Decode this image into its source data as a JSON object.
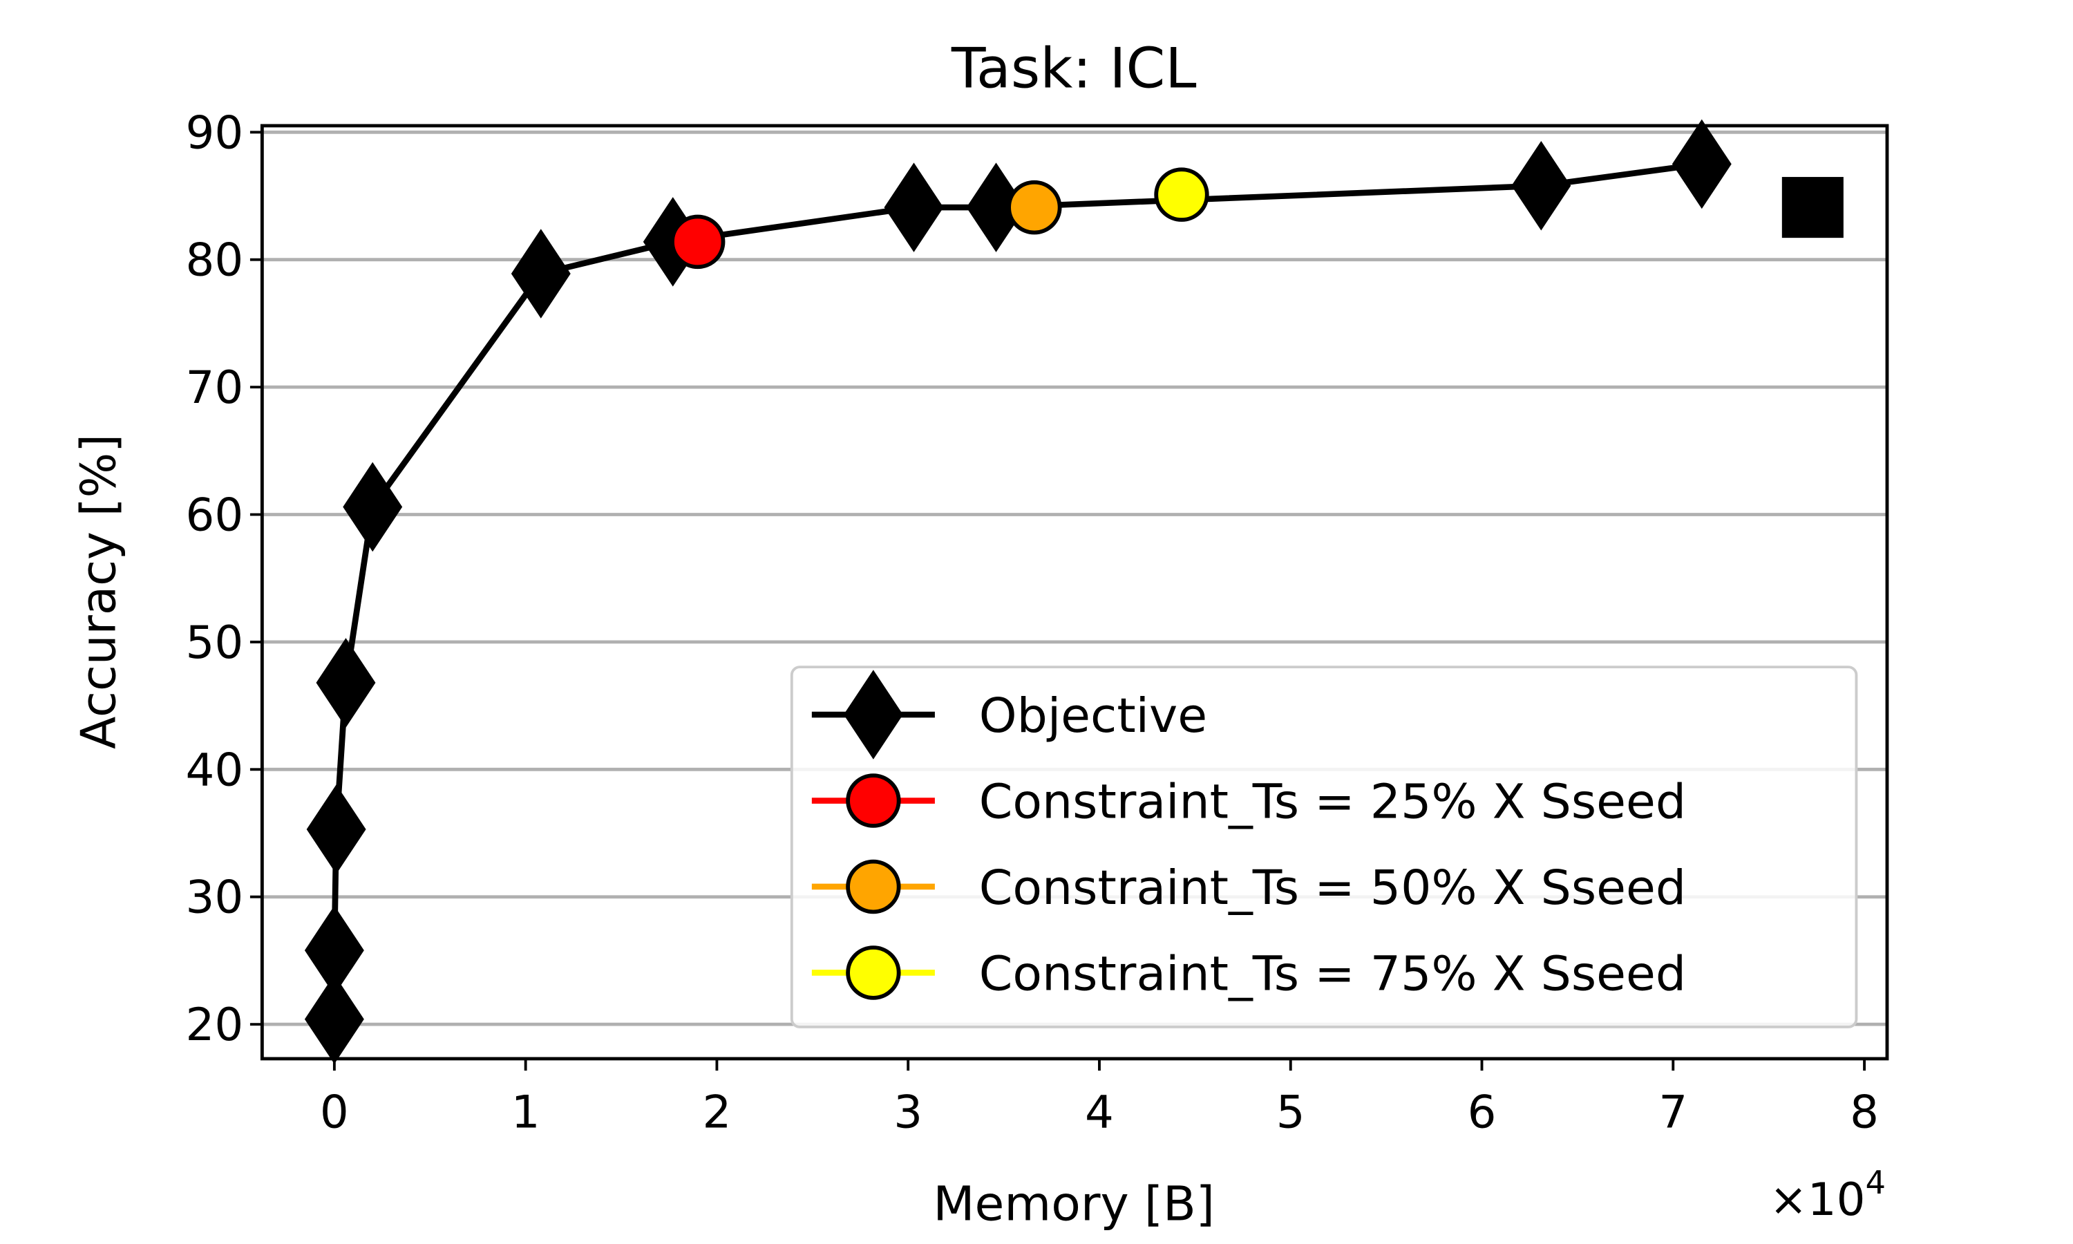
{
  "chart_data": {
    "type": "line",
    "title": "Task: ICL",
    "xlabel": "Memory [B]",
    "ylabel": "Accuracy [%]",
    "x_multiplier_label": "×10",
    "x_multiplier_exp": "4",
    "xlim": [
      -0.38,
      8.1
    ],
    "ylim": [
      17.2,
      90.5
    ],
    "xticks": [
      0,
      1,
      2,
      3,
      4,
      5,
      6,
      7,
      8
    ],
    "yticks": [
      20,
      30,
      40,
      50,
      60,
      70,
      80,
      90
    ],
    "grid": "y",
    "legend_position": "lower-right",
    "series": [
      {
        "name": "Objective",
        "marker": "diamond",
        "color": "#000000",
        "line": true,
        "x": [
          0.0,
          0.0,
          0.01,
          0.06,
          0.2,
          1.08,
          1.77,
          3.03,
          3.46,
          6.31,
          7.15
        ],
        "y": [
          20.4,
          25.8,
          35.3,
          46.8,
          60.6,
          78.9,
          81.4,
          84.1,
          84.1,
          85.8,
          87.5
        ]
      },
      {
        "name": "Constraint_Ts = 25% X Sseed",
        "marker": "circle",
        "color": "#ff0000",
        "line": false,
        "x": [
          1.9
        ],
        "y": [
          81.4
        ]
      },
      {
        "name": "Constraint_Ts = 50% X Sseed",
        "marker": "circle",
        "color": "#ffa500",
        "line": false,
        "x": [
          3.66
        ],
        "y": [
          84.1
        ]
      },
      {
        "name": "Constraint_Ts = 75% X Sseed",
        "marker": "circle",
        "color": "#ffff00",
        "line": false,
        "x": [
          4.43
        ],
        "y": [
          85.1
        ]
      },
      {
        "name": "unlabeled-square",
        "marker": "square",
        "color": "#000000",
        "line": false,
        "in_legend": false,
        "x": [
          7.73
        ],
        "y": [
          84.1
        ]
      }
    ]
  }
}
